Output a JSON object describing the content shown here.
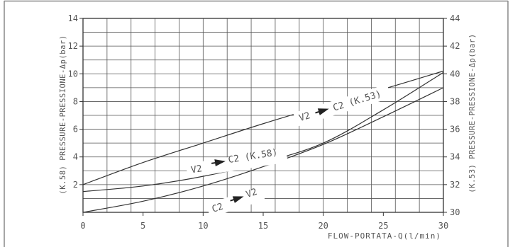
{
  "chart_data": {
    "type": "line",
    "title": "",
    "xlabel": "FLOW-PORTATA-Q(l/min)",
    "ylabel_left": "(K.58) PRESSURE-PRESSIONE-Δp(bar)",
    "ylabel_right": "(K.53) PRESSURE-PRESSIONE-Δp(bar)",
    "xlim": [
      0,
      30
    ],
    "ylim_left": [
      0,
      14
    ],
    "ylim_right": [
      30,
      44
    ],
    "grid": true,
    "x_ticks": [
      0,
      5,
      10,
      15,
      20,
      25,
      30
    ],
    "x_tick_labels": [
      "0",
      "5",
      "10",
      "15",
      "20",
      "25",
      "30"
    ],
    "y_left_ticks": [
      2,
      4,
      6,
      8,
      10,
      12,
      14
    ],
    "y_left_tick_labels": [
      "2",
      "4",
      "6",
      "8",
      "10",
      "12",
      "14"
    ],
    "y_right_ticks": [
      30,
      32,
      34,
      36,
      38,
      40,
      42,
      44
    ],
    "y_right_tick_labels": [
      "30",
      "32",
      "34",
      "36",
      "38",
      "40",
      "42",
      "44"
    ],
    "series": [
      {
        "name": "V2 → C2 (K.53)",
        "label_from": "V2",
        "label_to": "C2 (K.53)",
        "axis": "right",
        "x": [
          0,
          5,
          10,
          15,
          20,
          25,
          30
        ],
        "y": [
          32.0,
          33.6,
          35.0,
          36.4,
          37.7,
          38.9,
          40.2
        ]
      },
      {
        "name": "V2 → C2 (K.58)",
        "label_from": "V2",
        "label_to": "C2 (K.58)",
        "axis": "left",
        "x": [
          0,
          5,
          10,
          15,
          20,
          25,
          30
        ],
        "y": [
          1.5,
          1.9,
          2.6,
          3.6,
          5.0,
          7.4,
          10.1
        ]
      },
      {
        "name": "C2 → V2",
        "label_from": "C2",
        "label_to": "V2",
        "axis": "left",
        "x": [
          0,
          5,
          10,
          15,
          20,
          25,
          30
        ],
        "y": [
          0.0,
          0.8,
          1.9,
          3.3,
          4.9,
          6.9,
          9.0
        ]
      }
    ]
  }
}
